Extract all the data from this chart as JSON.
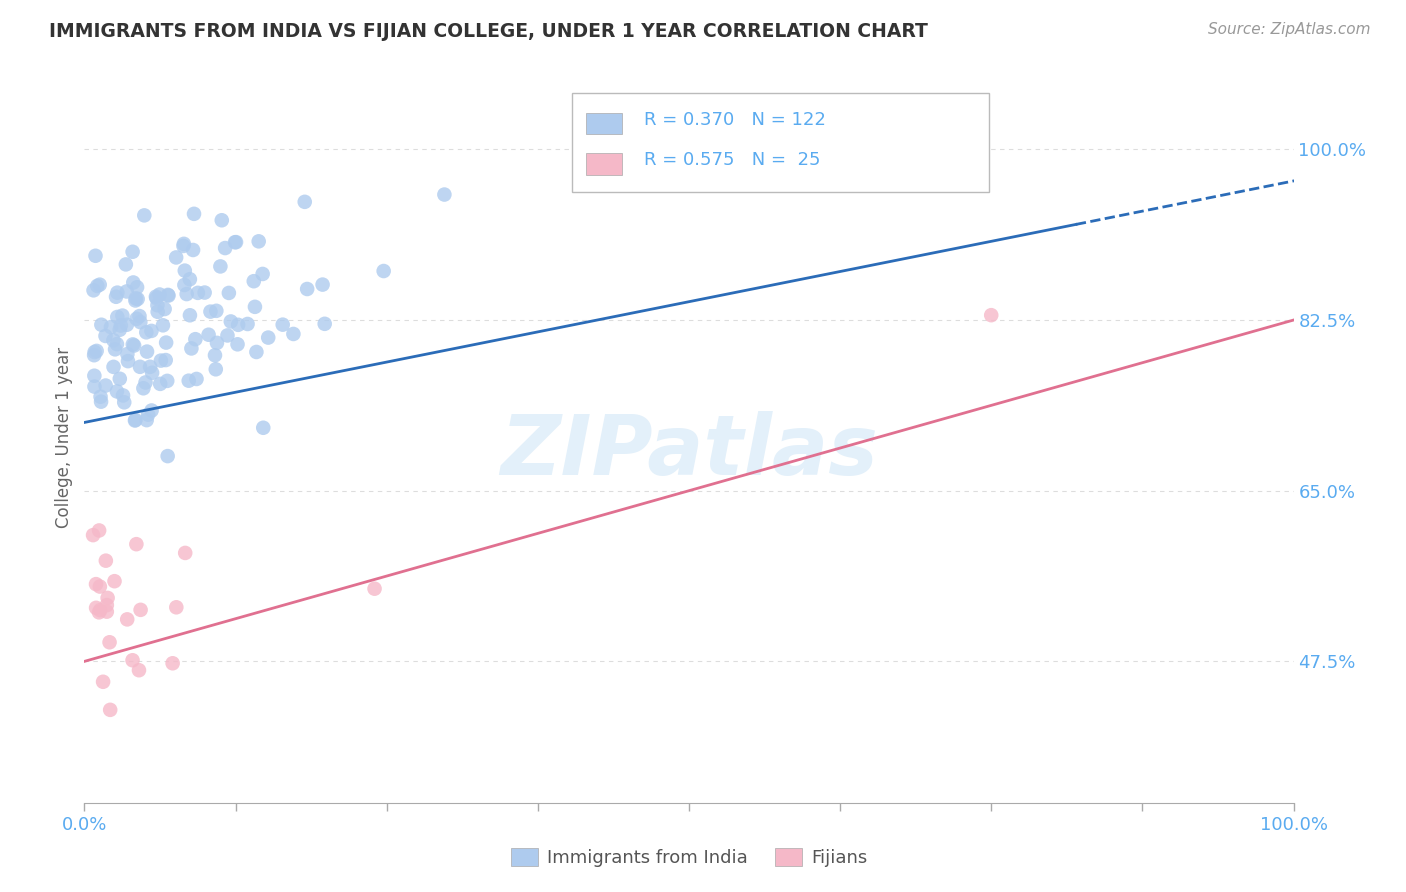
{
  "title": "IMMIGRANTS FROM INDIA VS FIJIAN COLLEGE, UNDER 1 YEAR CORRELATION CHART",
  "source_text": "Source: ZipAtlas.com",
  "ylabel": "College, Under 1 year",
  "ytick_labels": [
    "47.5%",
    "65.0%",
    "82.5%",
    "100.0%"
  ],
  "ytick_values": [
    0.475,
    0.65,
    0.825,
    1.0
  ],
  "xlim": [
    0.0,
    1.0
  ],
  "ylim": [
    0.33,
    1.08
  ],
  "blue_color": "#aecbee",
  "blue_line_color": "#2b6cb8",
  "pink_color": "#f5b8c8",
  "pink_line_color": "#e07090",
  "legend_series1": "Immigrants from India",
  "legend_series2": "Fijians",
  "watermark": "ZIPatlas",
  "blue_r": 0.37,
  "blue_n": 122,
  "pink_r": 0.575,
  "pink_n": 25,
  "blue_trendline_y_start": 0.72,
  "blue_trendline_y_end": 0.98,
  "pink_trendline_y_start": 0.475,
  "pink_trendline_y_end": 0.825,
  "background_color": "#ffffff",
  "grid_color": "#dddddd",
  "axis_label_color": "#5aabf0",
  "title_color": "#333333",
  "xtick_positions": [
    0.0,
    0.125,
    0.25,
    0.375,
    0.5,
    0.625,
    0.75,
    0.875,
    1.0
  ]
}
